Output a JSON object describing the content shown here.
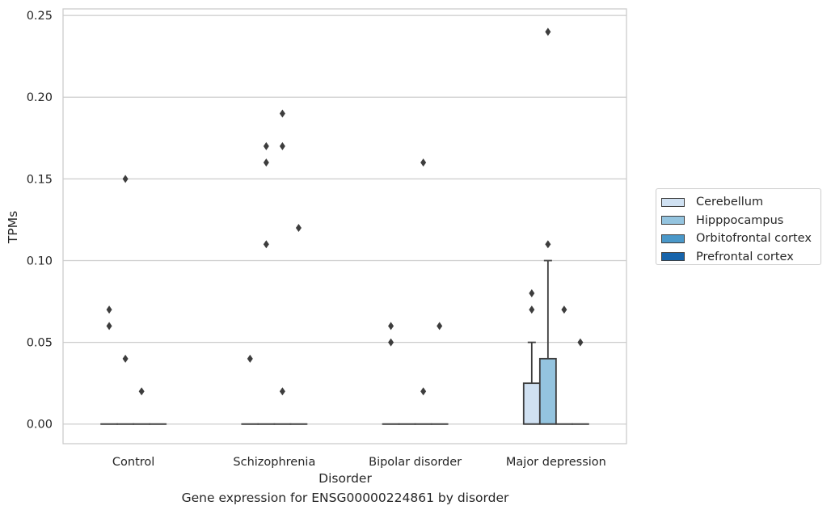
{
  "chart_data": {
    "type": "box",
    "title": "",
    "xlabel": "Disorder",
    "ylabel": "TPMs",
    "caption": "Gene expression for ENSG00000224861 by disorder",
    "categories": [
      "Control",
      "Schizophrenia",
      "Bipolar disorder",
      "Major depression"
    ],
    "ylim": [
      -0.012,
      0.254
    ],
    "yticks": [
      "0.00",
      "0.05",
      "0.10",
      "0.15",
      "0.20",
      "0.25"
    ],
    "ytick_values": [
      0,
      0.05,
      0.1,
      0.15,
      0.2,
      0.25
    ],
    "grid": "horizontal",
    "legend_position": "right",
    "series": [
      {
        "name": "Cerebellum",
        "color": "#d0e1f2",
        "boxes": [
          {
            "q1": 0,
            "median": 0,
            "q3": 0,
            "whisker_low": 0,
            "whisker_high": 0,
            "outliers": [
              0.07,
              0.06
            ]
          },
          {
            "q1": 0,
            "median": 0,
            "q3": 0,
            "whisker_low": 0,
            "whisker_high": 0,
            "outliers": [
              0.04
            ]
          },
          {
            "q1": 0,
            "median": 0,
            "q3": 0,
            "whisker_low": 0,
            "whisker_high": 0,
            "outliers": [
              0.06,
              0.05
            ]
          },
          {
            "q1": 0,
            "median": 0,
            "q3": 0.025,
            "whisker_low": 0,
            "whisker_high": 0.05,
            "outliers": [
              0.08,
              0.07
            ]
          }
        ]
      },
      {
        "name": "Hipppocampus",
        "color": "#94c4df",
        "boxes": [
          {
            "q1": 0,
            "median": 0,
            "q3": 0,
            "whisker_low": 0,
            "whisker_high": 0,
            "outliers": [
              0.15,
              0.04
            ]
          },
          {
            "q1": 0,
            "median": 0,
            "q3": 0,
            "whisker_low": 0,
            "whisker_high": 0,
            "outliers": [
              0.17,
              0.16,
              0.11
            ]
          },
          {
            "q1": 0,
            "median": 0,
            "q3": 0,
            "whisker_low": 0,
            "whisker_high": 0,
            "outliers": []
          },
          {
            "q1": 0,
            "median": 0,
            "q3": 0.04,
            "whisker_low": 0,
            "whisker_high": 0.1,
            "outliers": [
              0.24,
              0.11
            ]
          }
        ]
      },
      {
        "name": "Orbitofrontal cortex",
        "color": "#4a98c9",
        "boxes": [
          {
            "q1": 0,
            "median": 0,
            "q3": 0,
            "whisker_low": 0,
            "whisker_high": 0,
            "outliers": [
              0.02
            ]
          },
          {
            "q1": 0,
            "median": 0,
            "q3": 0,
            "whisker_low": 0,
            "whisker_high": 0,
            "outliers": [
              0.19,
              0.17,
              0.02
            ]
          },
          {
            "q1": 0,
            "median": 0,
            "q3": 0,
            "whisker_low": 0,
            "whisker_high": 0,
            "outliers": [
              0.16,
              0.02
            ]
          },
          {
            "q1": 0,
            "median": 0,
            "q3": 0,
            "whisker_low": 0,
            "whisker_high": 0,
            "outliers": [
              0.07
            ]
          }
        ]
      },
      {
        "name": "Prefrontal cortex",
        "color": "#1764ab",
        "boxes": [
          {
            "q1": 0,
            "median": 0,
            "q3": 0,
            "whisker_low": 0,
            "whisker_high": 0,
            "outliers": []
          },
          {
            "q1": 0,
            "median": 0,
            "q3": 0,
            "whisker_low": 0,
            "whisker_high": 0,
            "outliers": [
              0.12
            ]
          },
          {
            "q1": 0,
            "median": 0,
            "q3": 0,
            "whisker_low": 0,
            "whisker_high": 0,
            "outliers": [
              0.06
            ]
          },
          {
            "q1": 0,
            "median": 0,
            "q3": 0,
            "whisker_low": 0,
            "whisker_high": 0,
            "outliers": [
              0.05
            ]
          }
        ]
      }
    ]
  }
}
